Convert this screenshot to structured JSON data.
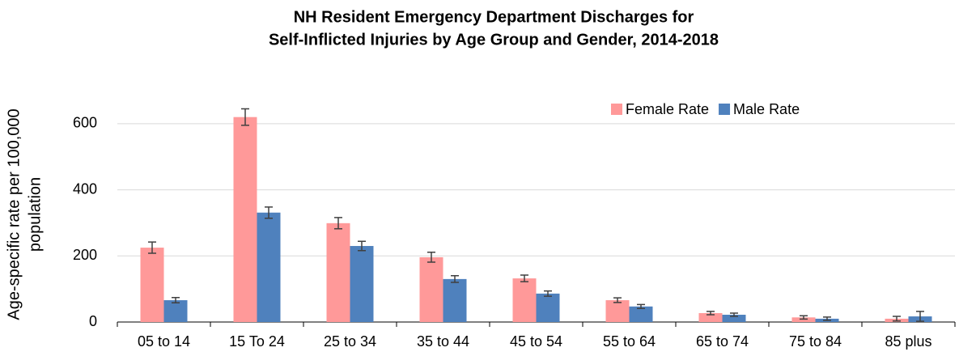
{
  "chart_data": {
    "type": "bar",
    "title": [
      "NH Resident Emergency Department Discharges for",
      "Self-Inflicted Injuries by Age Group and Gender, 2014-2018"
    ],
    "y_label": [
      "Age-specific rate per 100,000",
      "population"
    ],
    "categories": [
      "05 to 14",
      "15 To 24",
      "25 to 34",
      "35 to 44",
      "45 to 54",
      "55 to 64",
      "65 to 74",
      "75 to 84",
      "85 plus"
    ],
    "series": [
      {
        "name": "Female Rate",
        "color": "#ff9999",
        "values": [
          225,
          620,
          299,
          196,
          132,
          66,
          27,
          14,
          10
        ],
        "errors": [
          17,
          25,
          17,
          15,
          10,
          7,
          5,
          5,
          7
        ]
      },
      {
        "name": "Male Rate",
        "color": "#4f81bd",
        "values": [
          66,
          331,
          230,
          130,
          86,
          47,
          22,
          10,
          17
        ],
        "errors": [
          8,
          17,
          14,
          10,
          8,
          6,
          5,
          5,
          15
        ]
      }
    ],
    "ylim": [
      0,
      700
    ],
    "yticks": [
      0,
      200,
      400,
      600
    ],
    "grid": true,
    "legend": "top-right"
  }
}
